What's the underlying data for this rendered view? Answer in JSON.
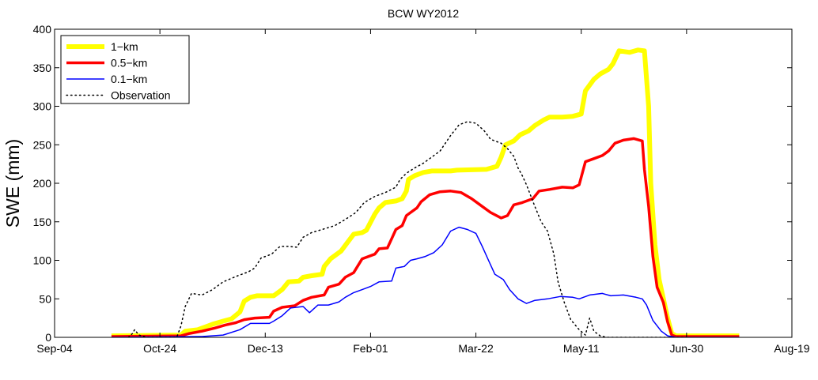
{
  "chart_data": {
    "type": "line",
    "title": "BCW WY2012",
    "xlabel": "",
    "ylabel": "SWE (mm)",
    "x_ticks": [
      "Sep-04",
      "Oct-24",
      "Dec-13",
      "Feb-01",
      "Mar-22",
      "May-11",
      "Jun-30",
      "Aug-19"
    ],
    "y_ticks": [
      "0",
      "50",
      "100",
      "150",
      "200",
      "250",
      "300",
      "350",
      "400"
    ],
    "xlim_days": [
      0,
      350
    ],
    "ylim": [
      0,
      400
    ],
    "x_unit": "days after Sep-04",
    "legend_position": "top-left",
    "grid": false,
    "series": [
      {
        "name": "1−km",
        "color": "#ffff00",
        "style": "solid",
        "width": 6,
        "points": [
          [
            27,
            2
          ],
          [
            60,
            3
          ],
          [
            62,
            8
          ],
          [
            68,
            10
          ],
          [
            72,
            14
          ],
          [
            75,
            17
          ],
          [
            80,
            21
          ],
          [
            84,
            24
          ],
          [
            88,
            33
          ],
          [
            90,
            47
          ],
          [
            93,
            52
          ],
          [
            96,
            54
          ],
          [
            104,
            54
          ],
          [
            108,
            62
          ],
          [
            111,
            72
          ],
          [
            116,
            73
          ],
          [
            118,
            78
          ],
          [
            122,
            80
          ],
          [
            127,
            82
          ],
          [
            128,
            92
          ],
          [
            131,
            102
          ],
          [
            136,
            112
          ],
          [
            139,
            123
          ],
          [
            142,
            134
          ],
          [
            146,
            136
          ],
          [
            148,
            139
          ],
          [
            152,
            160
          ],
          [
            154,
            168
          ],
          [
            157,
            175
          ],
          [
            162,
            177
          ],
          [
            165,
            180
          ],
          [
            167,
            190
          ],
          [
            168,
            205
          ],
          [
            171,
            210
          ],
          [
            175,
            214
          ],
          [
            179,
            216
          ],
          [
            188,
            216
          ],
          [
            191,
            217
          ],
          [
            205,
            218
          ],
          [
            210,
            222
          ],
          [
            212,
            234
          ],
          [
            214,
            250
          ],
          [
            218,
            255
          ],
          [
            221,
            263
          ],
          [
            225,
            268
          ],
          [
            228,
            275
          ],
          [
            232,
            282
          ],
          [
            235,
            286
          ],
          [
            241,
            286
          ],
          [
            246,
            287
          ],
          [
            250,
            290
          ],
          [
            252,
            320
          ],
          [
            256,
            335
          ],
          [
            259,
            342
          ],
          [
            263,
            348
          ],
          [
            265,
            355
          ],
          [
            268,
            372
          ],
          [
            273,
            370
          ],
          [
            277,
            373
          ],
          [
            280,
            372
          ],
          [
            282,
            300
          ],
          [
            283,
            200
          ],
          [
            285,
            120
          ],
          [
            287,
            75
          ],
          [
            289,
            50
          ],
          [
            291,
            25
          ],
          [
            293,
            5
          ],
          [
            295,
            2
          ],
          [
            325,
            2
          ]
        ]
      },
      {
        "name": "0.5−km",
        "color": "#ff0000",
        "style": "solid",
        "width": 3.5,
        "points": [
          [
            27,
            1
          ],
          [
            60,
            2
          ],
          [
            64,
            5
          ],
          [
            70,
            8
          ],
          [
            76,
            12
          ],
          [
            81,
            16
          ],
          [
            86,
            19
          ],
          [
            90,
            23
          ],
          [
            95,
            25
          ],
          [
            102,
            26
          ],
          [
            104,
            34
          ],
          [
            108,
            39
          ],
          [
            114,
            41
          ],
          [
            118,
            48
          ],
          [
            122,
            52
          ],
          [
            128,
            55
          ],
          [
            130,
            65
          ],
          [
            135,
            69
          ],
          [
            138,
            78
          ],
          [
            142,
            84
          ],
          [
            146,
            102
          ],
          [
            152,
            108
          ],
          [
            154,
            115
          ],
          [
            158,
            116
          ],
          [
            160,
            128
          ],
          [
            162,
            140
          ],
          [
            165,
            145
          ],
          [
            167,
            158
          ],
          [
            169,
            162
          ],
          [
            172,
            168
          ],
          [
            174,
            176
          ],
          [
            178,
            185
          ],
          [
            183,
            189
          ],
          [
            188,
            190
          ],
          [
            193,
            188
          ],
          [
            198,
            180
          ],
          [
            203,
            170
          ],
          [
            207,
            162
          ],
          [
            212,
            155
          ],
          [
            215,
            158
          ],
          [
            218,
            172
          ],
          [
            222,
            175
          ],
          [
            227,
            180
          ],
          [
            230,
            190
          ],
          [
            235,
            192
          ],
          [
            241,
            195
          ],
          [
            246,
            194
          ],
          [
            249,
            198
          ],
          [
            252,
            228
          ],
          [
            256,
            232
          ],
          [
            260,
            236
          ],
          [
            263,
            242
          ],
          [
            266,
            252
          ],
          [
            270,
            256
          ],
          [
            275,
            258
          ],
          [
            279,
            255
          ],
          [
            280,
            218
          ],
          [
            282,
            170
          ],
          [
            284,
            105
          ],
          [
            286,
            65
          ],
          [
            289,
            45
          ],
          [
            291,
            20
          ],
          [
            293,
            3
          ],
          [
            295,
            1
          ],
          [
            325,
            1
          ]
        ]
      },
      {
        "name": "0.1−km",
        "color": "#0000ff",
        "style": "solid",
        "width": 1.5,
        "points": [
          [
            27,
            0
          ],
          [
            70,
            1
          ],
          [
            80,
            3
          ],
          [
            88,
            10
          ],
          [
            93,
            18
          ],
          [
            102,
            18
          ],
          [
            104,
            21
          ],
          [
            108,
            28
          ],
          [
            112,
            38
          ],
          [
            118,
            40
          ],
          [
            121,
            32
          ],
          [
            125,
            42
          ],
          [
            130,
            42
          ],
          [
            135,
            46
          ],
          [
            138,
            52
          ],
          [
            142,
            58
          ],
          [
            146,
            62
          ],
          [
            150,
            66
          ],
          [
            154,
            72
          ],
          [
            160,
            73
          ],
          [
            162,
            90
          ],
          [
            166,
            92
          ],
          [
            169,
            100
          ],
          [
            172,
            102
          ],
          [
            176,
            105
          ],
          [
            180,
            110
          ],
          [
            184,
            120
          ],
          [
            188,
            138
          ],
          [
            192,
            143
          ],
          [
            196,
            140
          ],
          [
            200,
            135
          ],
          [
            203,
            118
          ],
          [
            206,
            100
          ],
          [
            209,
            82
          ],
          [
            213,
            75
          ],
          [
            216,
            62
          ],
          [
            220,
            50
          ],
          [
            224,
            44
          ],
          [
            228,
            48
          ],
          [
            234,
            50
          ],
          [
            240,
            53
          ],
          [
            246,
            52
          ],
          [
            249,
            50
          ],
          [
            254,
            55
          ],
          [
            260,
            57
          ],
          [
            264,
            54
          ],
          [
            270,
            55
          ],
          [
            276,
            52
          ],
          [
            279,
            50
          ],
          [
            281,
            42
          ],
          [
            284,
            22
          ],
          [
            288,
            8
          ],
          [
            291,
            2
          ],
          [
            295,
            0
          ],
          [
            325,
            0
          ]
        ]
      },
      {
        "name": "Observation",
        "color": "#000000",
        "style": "dotted",
        "width": 1.5,
        "points": [
          [
            35,
            0
          ],
          [
            37,
            5
          ],
          [
            38,
            10
          ],
          [
            40,
            3
          ],
          [
            44,
            0
          ],
          [
            58,
            0
          ],
          [
            60,
            15
          ],
          [
            62,
            40
          ],
          [
            65,
            57
          ],
          [
            70,
            55
          ],
          [
            75,
            62
          ],
          [
            80,
            72
          ],
          [
            87,
            80
          ],
          [
            92,
            85
          ],
          [
            95,
            90
          ],
          [
            98,
            103
          ],
          [
            103,
            108
          ],
          [
            107,
            118
          ],
          [
            111,
            118
          ],
          [
            115,
            117
          ],
          [
            118,
            130
          ],
          [
            122,
            136
          ],
          [
            127,
            140
          ],
          [
            133,
            145
          ],
          [
            138,
            153
          ],
          [
            143,
            162
          ],
          [
            147,
            175
          ],
          [
            152,
            183
          ],
          [
            157,
            188
          ],
          [
            162,
            195
          ],
          [
            164,
            205
          ],
          [
            167,
            213
          ],
          [
            171,
            220
          ],
          [
            175,
            226
          ],
          [
            179,
            234
          ],
          [
            183,
            242
          ],
          [
            188,
            262
          ],
          [
            192,
            276
          ],
          [
            196,
            280
          ],
          [
            200,
            278
          ],
          [
            204,
            268
          ],
          [
            207,
            257
          ],
          [
            212,
            252
          ],
          [
            215,
            245
          ],
          [
            218,
            235
          ],
          [
            220,
            220
          ],
          [
            222,
            210
          ],
          [
            224,
            198
          ],
          [
            228,
            170
          ],
          [
            231,
            150
          ],
          [
            234,
            138
          ],
          [
            237,
            108
          ],
          [
            239,
            72
          ],
          [
            242,
            45
          ],
          [
            245,
            23
          ],
          [
            249,
            10
          ],
          [
            252,
            3
          ],
          [
            254,
            25
          ],
          [
            256,
            8
          ],
          [
            259,
            2
          ],
          [
            262,
            0
          ],
          [
            300,
            0
          ]
        ]
      }
    ]
  }
}
